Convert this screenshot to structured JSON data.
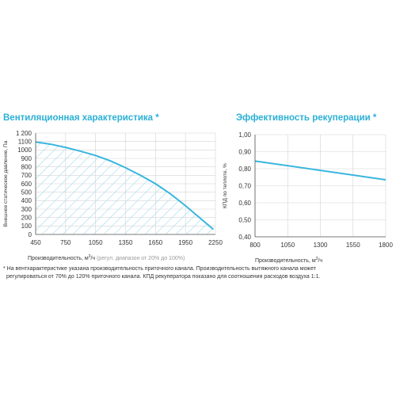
{
  "colors": {
    "accent": "#2bb0d6",
    "curve": "#3ab6de",
    "hatch": "#b9e3f1",
    "grid": "#d3d3d3",
    "text": "#333333",
    "muted": "#9a9a9a"
  },
  "chart_data": [
    {
      "type": "area",
      "title": "Вентиляционная характеристика *",
      "xlabel": "Производительность, м³/ч",
      "xlabel_note": "(регул. диапазон от 20% до 100%)",
      "ylabel": "Внешнее статическое давление, Па",
      "grid": true,
      "hatched_fill": true,
      "xlim": [
        450,
        2250
      ],
      "ylim": [
        0,
        1200
      ],
      "xticks": [
        450,
        750,
        1050,
        1350,
        1650,
        1950,
        2250
      ],
      "yticks": [
        0,
        100,
        200,
        300,
        400,
        500,
        600,
        700,
        800,
        900,
        1000,
        1100,
        1200
      ],
      "ytick_labels": [
        "0",
        "100",
        "200",
        "300",
        "400",
        "500",
        "600",
        "700",
        "800",
        "900",
        "1000",
        "1100",
        "1 200"
      ],
      "series": [
        {
          "x": [
            450,
            600,
            750,
            900,
            1050,
            1200,
            1350,
            1500,
            1650,
            1800,
            1950,
            2100,
            2230
          ],
          "y": [
            1095,
            1068,
            1030,
            985,
            935,
            870,
            790,
            700,
            600,
            480,
            340,
            190,
            60
          ]
        }
      ]
    },
    {
      "type": "line",
      "title": "Эффективность рекуперации *",
      "xlabel": "Производительность, м³/ч",
      "ylabel": "КПД по теплоте, %",
      "grid": true,
      "xlim": [
        800,
        1800
      ],
      "ylim": [
        0.4,
        1.0
      ],
      "xticks": [
        800,
        1050,
        1300,
        1550,
        1800
      ],
      "yticks": [
        0.4,
        0.5,
        0.6,
        0.7,
        0.8,
        0.9,
        1.0
      ],
      "ytick_labels": [
        "0,40",
        "0,50",
        "0,60",
        "0,70",
        "0,80",
        "0,90",
        "1,00"
      ],
      "series": [
        {
          "x": [
            800,
            1800
          ],
          "y": [
            0.845,
            0.735
          ]
        }
      ]
    }
  ],
  "footnote": {
    "line1": "* На вентхарактеристике указана производительность приточного канала. Производительность вытяжного канала может",
    "line2": "регулироваться от 70% до 120% приточного канала. КПД рекуператора показано для соотношения расходов воздуха 1:1."
  }
}
